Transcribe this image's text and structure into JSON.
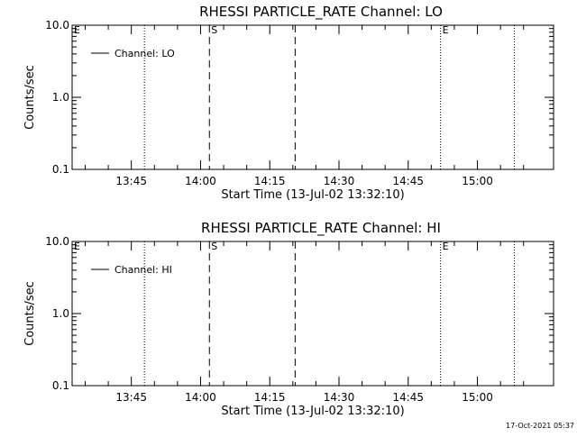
{
  "timestamp": "17-Oct-2021 05:37",
  "chart_data": [
    {
      "type": "line",
      "title": "RHESSI PARTICLE_RATE Channel: LO",
      "xlabel": "Start Time (13-Jul-02 13:32:10)",
      "ylabel": "Counts/sec",
      "yscale": "log",
      "ylim": [
        0.1,
        10.0
      ],
      "yticks": [
        "0.1",
        "1.0",
        "10.0"
      ],
      "xlim": [
        "13:32:10",
        "15:16:30"
      ],
      "xticks": [
        "13:45",
        "14:00",
        "14:15",
        "14:30",
        "14:45",
        "15:00"
      ],
      "series": [
        {
          "name": "Channel: LO",
          "x": [],
          "values": []
        }
      ],
      "legend_position": "top-left",
      "grid": false,
      "markers": [
        {
          "label": "E",
          "time": "13:32:10",
          "style": "dotted"
        },
        {
          "label": "",
          "time": "13:47:50",
          "style": "dotted"
        },
        {
          "label": "S",
          "time": "14:01:55",
          "style": "dashed"
        },
        {
          "label": "",
          "time": "14:20:30",
          "style": "dashed"
        },
        {
          "label": "E",
          "time": "14:52:00",
          "style": "dotted"
        },
        {
          "label": "",
          "time": "15:08:00",
          "style": "dotted"
        }
      ]
    },
    {
      "type": "line",
      "title": "RHESSI PARTICLE_RATE Channel: HI",
      "xlabel": "Start Time (13-Jul-02 13:32:10)",
      "ylabel": "Counts/sec",
      "yscale": "log",
      "ylim": [
        0.1,
        10.0
      ],
      "yticks": [
        "0.1",
        "1.0",
        "10.0"
      ],
      "xlim": [
        "13:32:10",
        "15:16:30"
      ],
      "xticks": [
        "13:45",
        "14:00",
        "14:15",
        "14:30",
        "14:45",
        "15:00"
      ],
      "series": [
        {
          "name": "Channel: HI",
          "x": [],
          "values": []
        }
      ],
      "legend_position": "top-left",
      "grid": false,
      "markers": [
        {
          "label": "E",
          "time": "13:32:10",
          "style": "dotted"
        },
        {
          "label": "",
          "time": "13:47:50",
          "style": "dotted"
        },
        {
          "label": "S",
          "time": "14:01:55",
          "style": "dashed"
        },
        {
          "label": "",
          "time": "14:20:30",
          "style": "dashed"
        },
        {
          "label": "E",
          "time": "14:52:00",
          "style": "dotted"
        },
        {
          "label": "",
          "time": "15:08:00",
          "style": "dotted"
        }
      ]
    }
  ]
}
